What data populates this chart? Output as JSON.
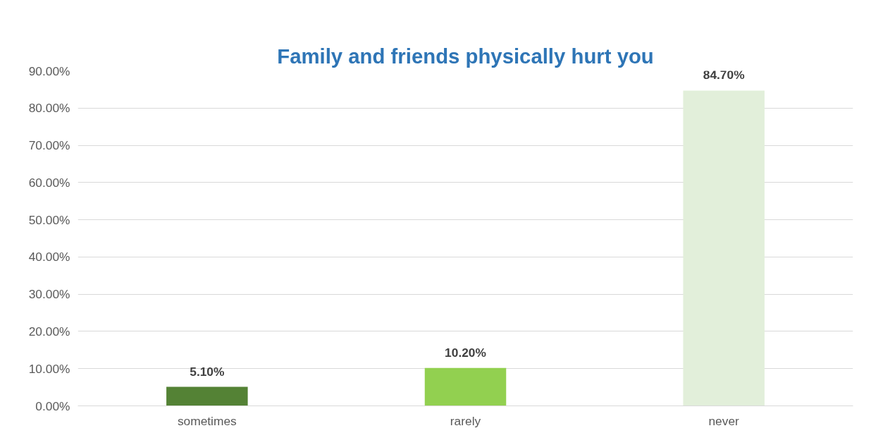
{
  "chart_data": {
    "type": "bar",
    "title": "Family and friends physically hurt you",
    "categories": [
      "sometimes",
      "rarely",
      "never"
    ],
    "values": [
      5.1,
      10.2,
      84.7
    ],
    "colors": [
      "#548235",
      "#92d050",
      "#e2efda"
    ],
    "value_labels": [
      "5.10%",
      "10.20%",
      "84.70%"
    ],
    "ylim": [
      0,
      90
    ],
    "yticks": [
      {
        "value": 0,
        "label": "0.00%"
      },
      {
        "value": 10,
        "label": "10.00%"
      },
      {
        "value": 20,
        "label": "20.00%"
      },
      {
        "value": 30,
        "label": "30.00%"
      },
      {
        "value": 40,
        "label": "40.00%"
      },
      {
        "value": 50,
        "label": "50.00%"
      },
      {
        "value": 60,
        "label": "60.00%"
      },
      {
        "value": 70,
        "label": "70.00%"
      },
      {
        "value": 80,
        "label": "80.00%"
      },
      {
        "value": 90,
        "label": "90.00%"
      }
    ],
    "grid": "y"
  }
}
